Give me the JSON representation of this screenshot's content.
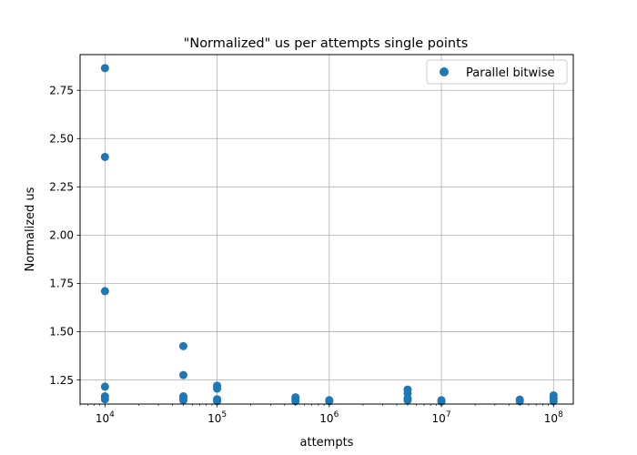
{
  "chart_data": {
    "type": "scatter",
    "title": "\"Normalized\" us per attempts single points",
    "xlabel": "attempts",
    "ylabel": "Normalized us",
    "xscale": "log",
    "xlim": [
      6000,
      150000000
    ],
    "ylim": [
      1.125,
      2.935
    ],
    "xticks": [
      {
        "value": 10000,
        "base": "10",
        "exp": "4"
      },
      {
        "value": 100000,
        "base": "10",
        "exp": "5"
      },
      {
        "value": 1000000,
        "base": "10",
        "exp": "6"
      },
      {
        "value": 10000000,
        "base": "10",
        "exp": "7"
      },
      {
        "value": 100000000,
        "base": "10",
        "exp": "8"
      }
    ],
    "yticks": [
      {
        "value": 1.25,
        "label": "1.25"
      },
      {
        "value": 1.5,
        "label": "1.50"
      },
      {
        "value": 1.75,
        "label": "1.75"
      },
      {
        "value": 2.0,
        "label": "2.00"
      },
      {
        "value": 2.25,
        "label": "2.25"
      },
      {
        "value": 2.5,
        "label": "2.50"
      },
      {
        "value": 2.75,
        "label": "2.75"
      }
    ],
    "grid": true,
    "legend_position": "top-right",
    "series": [
      {
        "name": "Parallel bitwise",
        "color": "#1f77b4",
        "points": [
          {
            "x": 10000,
            "y": 2.865
          },
          {
            "x": 10000,
            "y": 2.405
          },
          {
            "x": 10000,
            "y": 1.71
          },
          {
            "x": 10000,
            "y": 1.215
          },
          {
            "x": 10000,
            "y": 1.165
          },
          {
            "x": 10000,
            "y": 1.15
          },
          {
            "x": 50000,
            "y": 1.425
          },
          {
            "x": 50000,
            "y": 1.275
          },
          {
            "x": 50000,
            "y": 1.165
          },
          {
            "x": 50000,
            "y": 1.155
          },
          {
            "x": 50000,
            "y": 1.145
          },
          {
            "x": 100000,
            "y": 1.22
          },
          {
            "x": 100000,
            "y": 1.205
          },
          {
            "x": 100000,
            "y": 1.15
          },
          {
            "x": 100000,
            "y": 1.14
          },
          {
            "x": 500000,
            "y": 1.16
          },
          {
            "x": 500000,
            "y": 1.15
          },
          {
            "x": 500000,
            "y": 1.14
          },
          {
            "x": 1000000,
            "y": 1.145
          },
          {
            "x": 1000000,
            "y": 1.14
          },
          {
            "x": 5000000,
            "y": 1.2
          },
          {
            "x": 5000000,
            "y": 1.18
          },
          {
            "x": 5000000,
            "y": 1.155
          },
          {
            "x": 5000000,
            "y": 1.145
          },
          {
            "x": 10000000,
            "y": 1.145
          },
          {
            "x": 10000000,
            "y": 1.138
          },
          {
            "x": 50000000,
            "y": 1.148
          },
          {
            "x": 50000000,
            "y": 1.14
          },
          {
            "x": 100000000,
            "y": 1.17
          },
          {
            "x": 100000000,
            "y": 1.155
          },
          {
            "x": 100000000,
            "y": 1.14
          }
        ]
      }
    ]
  }
}
